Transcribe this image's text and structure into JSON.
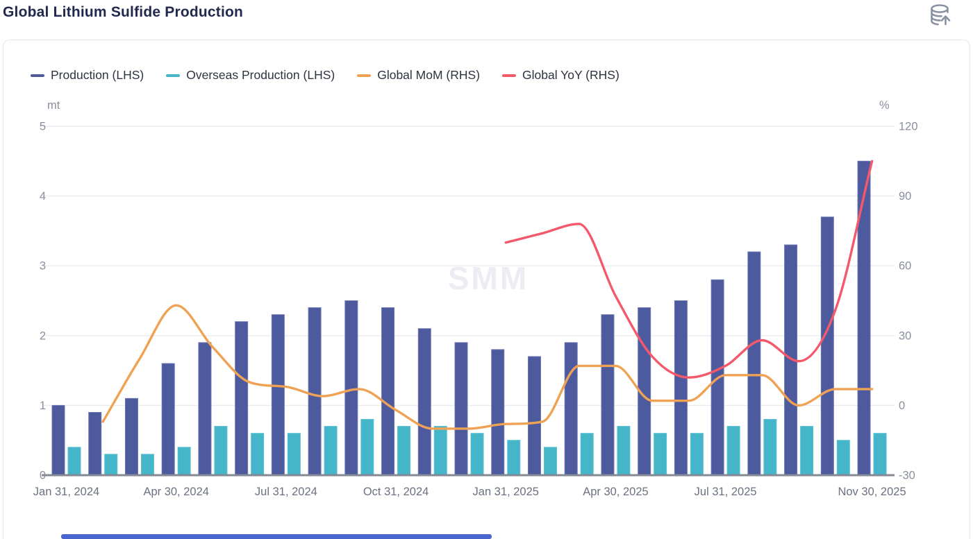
{
  "header": {
    "title": "Global Lithium Sulfide Production",
    "export_icon": "database-upload-icon"
  },
  "legend": {
    "items": [
      {
        "label": "Production (LHS)",
        "color": "#4d5a9e"
      },
      {
        "label": "Overseas Production (LHS)",
        "color": "#45b6ca"
      },
      {
        "label": "Global MoM (RHS)",
        "color": "#f0a254"
      },
      {
        "label": "Global  YoY (RHS)",
        "color": "#f4596b"
      }
    ]
  },
  "chart_data": {
    "type": "bar-line-combo",
    "title": "Global Lithium Sulfide Production",
    "watermark": "SMM",
    "categories": [
      "Jan 31, 2024",
      "Feb 29, 2024",
      "Mar 31, 2024",
      "Apr 30, 2024",
      "May 31, 2024",
      "Jun 30, 2024",
      "Jul 31, 2024",
      "Aug 31, 2024",
      "Sep 30, 2024",
      "Oct 31, 2024",
      "Nov 30, 2024",
      "Dec 31, 2024",
      "Jan 31, 2025",
      "Feb 28, 2025",
      "Mar 31, 2025",
      "Apr 30, 2025",
      "May 31, 2025",
      "Jun 30, 2025",
      "Jul 31, 2025",
      "Aug 31, 2025",
      "Sep 30, 2025",
      "Oct 31, 2025",
      "Nov 30, 2025"
    ],
    "x_tick_indices": [
      0,
      3,
      6,
      9,
      12,
      15,
      18,
      22
    ],
    "left_axis": {
      "unit": "mt",
      "min": 0,
      "max": 5,
      "ticks": [
        0,
        1,
        2,
        3,
        4,
        5
      ]
    },
    "right_axis": {
      "unit": "%",
      "min": -30,
      "max": 120,
      "ticks": [
        -30,
        0,
        30,
        60,
        90,
        120
      ]
    },
    "grid": true,
    "legend_position": "top-left",
    "series": [
      {
        "name": "Production (LHS)",
        "kind": "bar",
        "axis": "left",
        "color": "#4d5a9e",
        "edge_color": "#6b76b2",
        "values": [
          1.0,
          0.9,
          1.1,
          1.6,
          1.9,
          2.2,
          2.3,
          2.4,
          2.5,
          2.4,
          2.1,
          1.9,
          1.8,
          1.7,
          1.9,
          2.3,
          2.4,
          2.5,
          2.8,
          3.2,
          3.3,
          3.7,
          4.5
        ]
      },
      {
        "name": "Overseas Production (LHS)",
        "kind": "bar",
        "axis": "left",
        "color": "#45b6ca",
        "edge_color": "#5cc0d0",
        "values": [
          0.4,
          0.3,
          0.3,
          0.4,
          0.7,
          0.6,
          0.6,
          0.7,
          0.8,
          0.7,
          0.7,
          0.6,
          0.5,
          0.4,
          0.6,
          0.7,
          0.6,
          0.6,
          0.7,
          0.8,
          0.7,
          0.5,
          0.6
        ]
      },
      {
        "name": "Global MoM (RHS)",
        "kind": "line",
        "axis": "right",
        "color": "#f0a254",
        "values": [
          null,
          -7,
          20,
          43,
          25,
          10,
          8,
          4,
          7,
          -2,
          -10,
          -10,
          -8,
          -7,
          17,
          17,
          2,
          2,
          13,
          13,
          0,
          7,
          7
        ]
      },
      {
        "name": "Global  YoY (RHS)",
        "kind": "line",
        "axis": "right",
        "color": "#f4596b",
        "values": [
          null,
          null,
          null,
          null,
          null,
          null,
          null,
          null,
          null,
          null,
          null,
          null,
          70,
          74,
          78,
          47,
          21,
          12,
          17,
          28,
          19,
          41,
          105
        ]
      }
    ]
  },
  "colors": {
    "title": "#22294e",
    "axis_tick": "#8a8f9e",
    "x_label": "#6b7180",
    "gridline": "#e9ebf3",
    "baseline": "#838a94",
    "watermark": "#ecedf2",
    "card_border": "#e4e7ef",
    "scrollbar": "#4a66cf",
    "icon": "#8a92a2"
  }
}
